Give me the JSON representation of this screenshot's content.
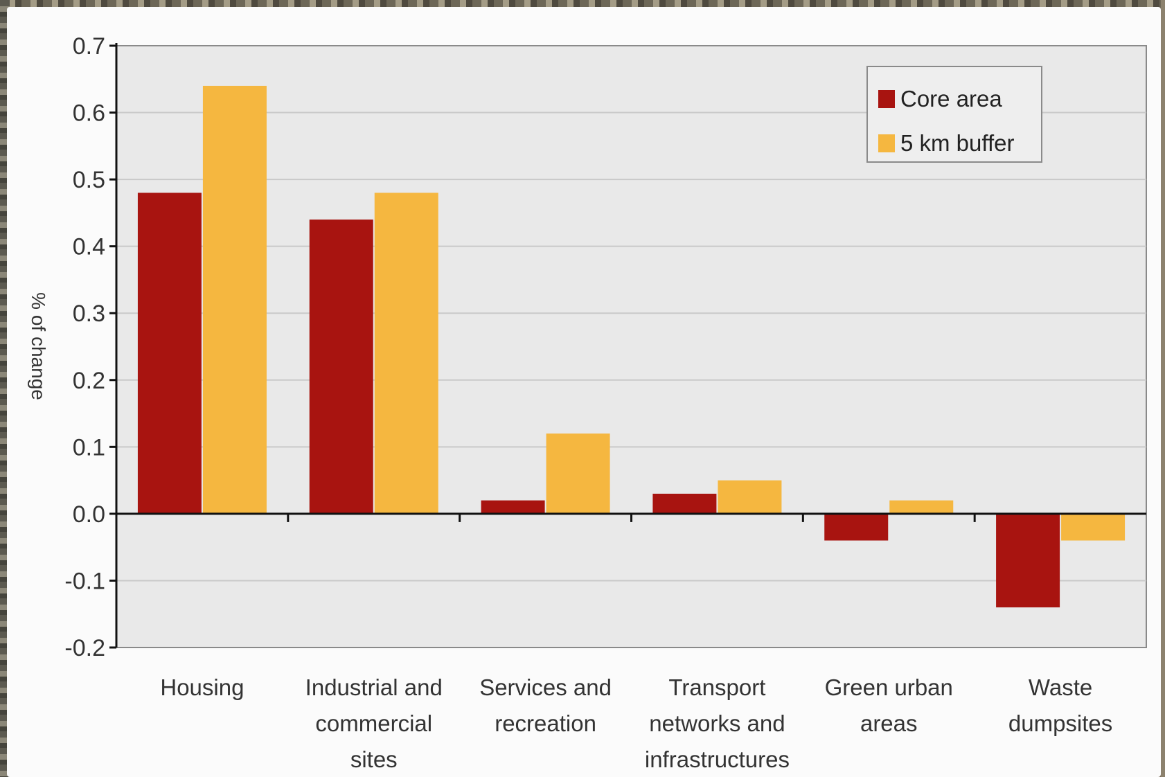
{
  "chart_data": {
    "type": "bar",
    "title": "",
    "xlabel": "",
    "ylabel": "% of change",
    "ylim": [
      -0.2,
      0.7
    ],
    "yticks": [
      "0.7",
      "0.6",
      "0.5",
      "0.4",
      "0.3",
      "0.2",
      "0.1",
      "0.0",
      "-0.1",
      "-0.2"
    ],
    "ytick_values": [
      0.7,
      0.6,
      0.5,
      0.4,
      0.3,
      0.2,
      0.1,
      0.0,
      -0.1,
      -0.2
    ],
    "grid": true,
    "legend_position": "top-right",
    "categories": [
      [
        "Housing"
      ],
      [
        "Industrial and",
        "commercial",
        "sites"
      ],
      [
        "Services and",
        "recreation"
      ],
      [
        "Transport",
        "networks and",
        "infrastructures"
      ],
      [
        "Green urban",
        "areas"
      ],
      [
        "Waste",
        "dumpsites"
      ]
    ],
    "series": [
      {
        "name": "Core area",
        "color": "#a81410",
        "values": [
          0.48,
          0.44,
          0.02,
          0.03,
          -0.04,
          -0.14
        ]
      },
      {
        "name": "5 km buffer",
        "color": "#f5b740",
        "values": [
          0.64,
          0.48,
          0.12,
          0.05,
          0.02,
          -0.04
        ]
      }
    ]
  }
}
